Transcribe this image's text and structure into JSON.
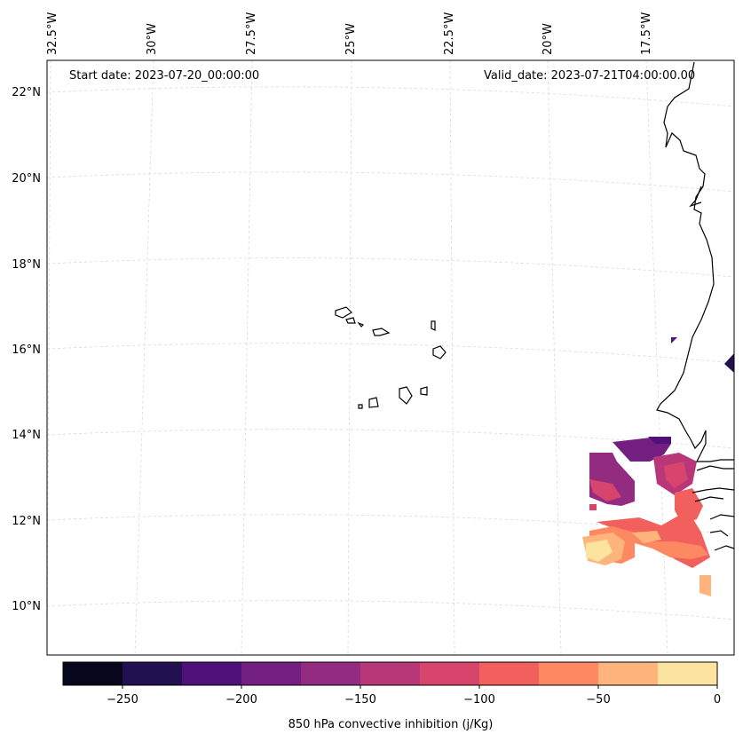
{
  "header": {
    "start_date": "Start date: 2023-07-20_00:00:00",
    "valid_date": "Valid_date: 2023-07-21T04:00:00.00"
  },
  "axes": {
    "longitude_labels": [
      "32.5°W",
      "30°W",
      "27.5°W",
      "25°W",
      "22.5°W",
      "20°W",
      "17.5°W"
    ],
    "latitude_labels": [
      "22°N",
      "20°N",
      "18°N",
      "16°N",
      "14°N",
      "12°N",
      "10°N"
    ]
  },
  "colorbar": {
    "label": "850 hPa convective inhibition (j/Kg)",
    "tick_labels": [
      "−250",
      "−200",
      "−150",
      "−100",
      "−50",
      "0"
    ],
    "levels": [
      -275,
      -250,
      -225,
      -200,
      -175,
      -150,
      -125,
      -100,
      -75,
      -50,
      -25,
      0
    ],
    "colors": [
      "#07061c",
      "#221150",
      "#4f127b",
      "#721f81",
      "#932b80",
      "#b73779",
      "#d8456c",
      "#f1605d",
      "#fc8961",
      "#feb47b",
      "#fde3a0"
    ]
  },
  "colors": {
    "coastline": "#000000",
    "grid": "#d9d9d9"
  }
}
